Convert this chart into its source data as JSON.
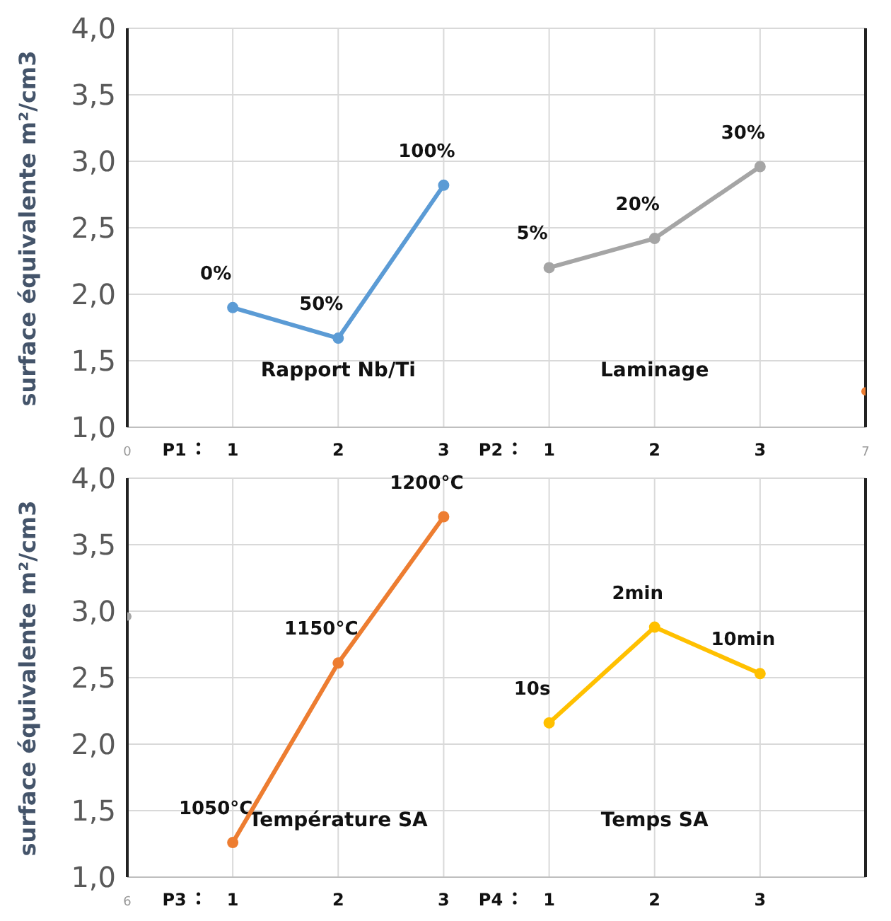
{
  "chart_data": [
    {
      "type": "line",
      "ylabel": "surface équivalente m²/cm3",
      "ylim": [
        1,
        4
      ],
      "grid": true,
      "marker": "circle",
      "line_style": "solid",
      "categories": [
        "0",
        "P1",
        "1",
        null,
        "2",
        null,
        "3",
        "P2",
        "1",
        null,
        "2",
        null,
        "3",
        null,
        "7"
      ],
      "yticks": [
        {
          "value": 1,
          "label": "1,0"
        },
        {
          "value": 1.5,
          "label": "1,5"
        },
        {
          "value": 2,
          "label": "2,0"
        },
        {
          "value": 2.5,
          "label": "2,5"
        },
        {
          "value": 3,
          "label": "3,0"
        },
        {
          "value": 3.5,
          "label": "3,5"
        },
        {
          "value": 4,
          "label": "4,0"
        }
      ],
      "series": [
        {
          "color": "#5b9bd5",
          "values": [
            null,
            null,
            1.9,
            null,
            1.67,
            null,
            2.82,
            null,
            null,
            null,
            null,
            null,
            null,
            null,
            null
          ]
        },
        {
          "color": "#a5a5a5",
          "values": [
            null,
            null,
            null,
            null,
            null,
            null,
            null,
            null,
            2.2,
            null,
            2.42,
            null,
            2.96,
            null,
            null
          ]
        },
        {
          "type": "scatter",
          "color": "#ed7d31",
          "values": [
            null,
            null,
            null,
            null,
            null,
            null,
            null,
            null,
            null,
            null,
            null,
            null,
            null,
            null,
            1.27
          ]
        }
      ],
      "annotations": [
        "0%",
        "50%",
        "100%",
        "5%",
        "20%",
        "30%",
        "Rapport Nb/Ti",
        "Laminage"
      ]
    },
    {
      "type": "line",
      "ylabel": "surface équivalente m²/cm3",
      "ylim": [
        1,
        4
      ],
      "grid": true,
      "marker": "circle",
      "line_style": "solid",
      "categories": [
        "6",
        "P3",
        "1",
        null,
        "2",
        null,
        "3",
        "P4",
        "1",
        null,
        "2",
        null,
        "3",
        null,
        null
      ],
      "yticks": [
        {
          "value": 1,
          "label": "1,0"
        },
        {
          "value": 1.5,
          "label": "1,5"
        },
        {
          "value": 2,
          "label": "2,0"
        },
        {
          "value": 2.5,
          "label": "2,5"
        },
        {
          "value": 3,
          "label": "3,0"
        },
        {
          "value": 3.5,
          "label": "3,5"
        },
        {
          "value": 4,
          "label": "4,0"
        }
      ],
      "series": [
        {
          "color": "#ed7d31",
          "values": [
            null,
            null,
            1.26,
            null,
            2.61,
            null,
            3.71,
            null,
            null,
            null,
            null,
            null,
            null,
            null,
            null
          ]
        },
        {
          "color": "#ffc000",
          "values": [
            null,
            null,
            null,
            null,
            null,
            null,
            null,
            null,
            2.16,
            null,
            2.88,
            null,
            2.53,
            null,
            null
          ]
        },
        {
          "type": "scatter",
          "color": "#a5a5a5",
          "values": [
            2.96,
            null,
            null,
            null,
            null,
            null,
            null,
            null,
            null,
            null,
            null,
            null,
            null,
            null,
            null
          ]
        }
      ],
      "annotations": [
        "1050°C",
        "1150°C",
        "1200°C",
        "10s",
        "2min",
        "10min",
        "Température SA",
        "Temps SA"
      ]
    }
  ]
}
